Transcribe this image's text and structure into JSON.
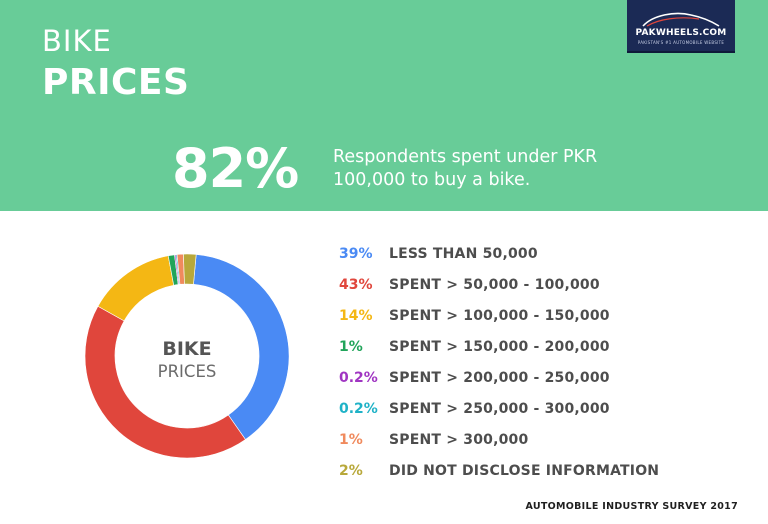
{
  "header": {
    "title_line1": "BIKE",
    "title_line2": "PRICES",
    "logo_text": "PAKWHEELS.COM",
    "logo_tagline": "PAKISTAN'S #1 AUTOMOBILE WEBSITE",
    "highlight_value": "82%",
    "highlight_text": "Respondents spent under PKR 100,000 to buy a bike."
  },
  "chart_data": {
    "type": "pie",
    "donut": true,
    "center_label_line1": "BIKE",
    "center_label_line2": "PRICES",
    "legend_position": "right",
    "slices": [
      {
        "label": "LESS THAN 50,000",
        "value": 39,
        "display": "39%",
        "color": "#4a8af4"
      },
      {
        "label": "SPENT > 50,000 - 100,000",
        "value": 43,
        "display": "43%",
        "color": "#e0463c"
      },
      {
        "label": "SPENT > 100,000 - 150,000",
        "value": 14,
        "display": "14%",
        "color": "#f4b714"
      },
      {
        "label": "SPENT > 150,000 - 200,000",
        "value": 1,
        "display": "1%",
        "color": "#21a45a"
      },
      {
        "label": "SPENT > 200,000 - 250,000",
        "value": 0.2,
        "display": "0.2%",
        "color": "#a035c2"
      },
      {
        "label": "SPENT > 250,000 - 300,000",
        "value": 0.2,
        "display": "0.2%",
        "color": "#1fb2c7"
      },
      {
        "label": "SPENT > 300,000",
        "value": 1,
        "display": "1%",
        "color": "#f08a5d"
      },
      {
        "label": "DID NOT DISCLOSE INFORMATION",
        "value": 2,
        "display": "2%",
        "color": "#b8a83a"
      }
    ]
  },
  "footer": {
    "source": "AUTOMOBILE INDUSTRY SURVEY 2017"
  }
}
